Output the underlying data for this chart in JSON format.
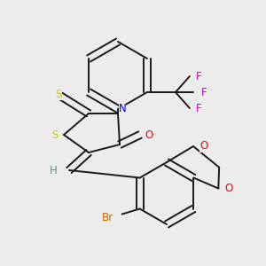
{
  "background_color": "#ececec",
  "fig_width": 3.0,
  "fig_height": 3.0,
  "dpi": 100,
  "bond_color": "#1a1a1a",
  "bond_lw": 1.4,
  "colors": {
    "S": "#cccc00",
    "N": "#0000ee",
    "O": "#ff0000",
    "Br": "#cc6600",
    "H": "#4a9090",
    "F": "#cc00cc",
    "C": "#1a1a1a"
  },
  "label_fontsize": 8.5
}
